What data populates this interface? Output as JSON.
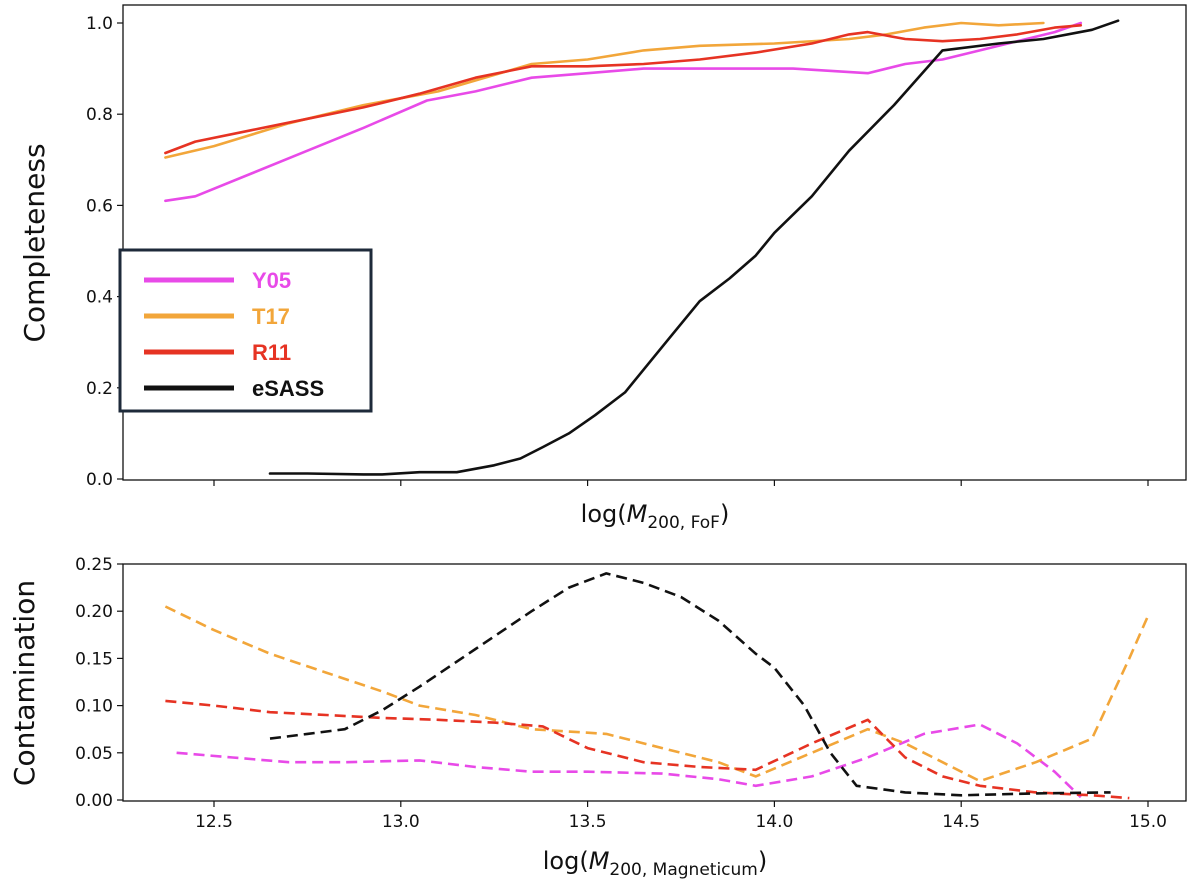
{
  "chart_data": [
    {
      "type": "line",
      "title": "",
      "ylabel": "Completeness",
      "xlabel": "log(M_{200, FoF})",
      "xlabel_main": "log(",
      "xlabel_var": "M",
      "xlabel_sub": "200, FoF",
      "xlabel_close": ")",
      "xlim": [
        12.2,
        15.0
      ],
      "ylim": [
        0.0,
        1.05
      ],
      "yticks": [
        0.0,
        0.2,
        0.4,
        0.6,
        0.8,
        1.0
      ],
      "ytick_labels": [
        "0.0",
        "0.2",
        "0.4",
        "0.6",
        "0.8",
        "1.0"
      ],
      "xticks": [
        12.5,
        13.0,
        13.5,
        14.0,
        14.5,
        15.0
      ],
      "legend": {
        "placement": "center-left"
      },
      "series": [
        {
          "name": "Y05",
          "color": "#e84ae8",
          "style": "solid",
          "x": [
            12.37,
            12.45,
            12.6,
            12.75,
            12.9,
            13.07,
            13.2,
            13.35,
            13.5,
            13.65,
            13.8,
            13.95,
            14.05,
            14.25,
            14.35,
            14.45,
            14.55,
            14.65,
            14.75,
            14.82
          ],
          "y": [
            0.61,
            0.62,
            0.67,
            0.72,
            0.77,
            0.83,
            0.85,
            0.88,
            0.89,
            0.9,
            0.9,
            0.9,
            0.9,
            0.89,
            0.91,
            0.92,
            0.94,
            0.96,
            0.98,
            1.0
          ]
        },
        {
          "name": "T17",
          "color": "#f2a63a",
          "style": "solid",
          "x": [
            12.37,
            12.5,
            12.7,
            12.9,
            13.1,
            13.35,
            13.5,
            13.65,
            13.8,
            14.0,
            14.2,
            14.3,
            14.4,
            14.5,
            14.6,
            14.72
          ],
          "y": [
            0.705,
            0.73,
            0.78,
            0.82,
            0.85,
            0.91,
            0.92,
            0.94,
            0.95,
            0.955,
            0.965,
            0.975,
            0.99,
            1.0,
            0.995,
            1.0
          ]
        },
        {
          "name": "R11",
          "color": "#e63323",
          "style": "solid",
          "x": [
            12.37,
            12.45,
            12.6,
            12.75,
            12.9,
            13.05,
            13.2,
            13.35,
            13.5,
            13.65,
            13.8,
            13.95,
            14.1,
            14.2,
            14.25,
            14.35,
            14.45,
            14.55,
            14.65,
            14.75,
            14.82
          ],
          "y": [
            0.715,
            0.74,
            0.765,
            0.79,
            0.815,
            0.845,
            0.88,
            0.905,
            0.905,
            0.91,
            0.92,
            0.935,
            0.955,
            0.975,
            0.98,
            0.965,
            0.96,
            0.965,
            0.975,
            0.99,
            0.995
          ]
        },
        {
          "name": "eSASS",
          "color": "#111111",
          "style": "solid",
          "x": [
            12.65,
            12.75,
            12.9,
            12.95,
            13.05,
            13.15,
            13.25,
            13.32,
            13.38,
            13.45,
            13.52,
            13.6,
            13.67,
            13.72,
            13.8,
            13.88,
            13.95,
            14.0,
            14.1,
            14.2,
            14.32,
            14.45,
            14.6,
            14.72,
            14.85,
            14.92
          ],
          "y": [
            0.012,
            0.012,
            0.01,
            0.01,
            0.015,
            0.015,
            0.03,
            0.045,
            0.07,
            0.1,
            0.14,
            0.19,
            0.26,
            0.31,
            0.39,
            0.44,
            0.49,
            0.54,
            0.62,
            0.72,
            0.82,
            0.94,
            0.955,
            0.965,
            0.985,
            1.005
          ]
        }
      ]
    },
    {
      "type": "line",
      "title": "",
      "ylabel": "Contamination",
      "xlabel": "log(M_{200, Magneticum})",
      "xlabel_main": "log(",
      "xlabel_var": "M",
      "xlabel_sub": "200, Magneticum",
      "xlabel_close": ")",
      "xlim": [
        12.2,
        15.0
      ],
      "ylim": [
        0.0,
        0.25
      ],
      "yticks": [
        0.0,
        0.05,
        0.1,
        0.15,
        0.2,
        0.25
      ],
      "ytick_labels": [
        "0.00",
        "0.05",
        "0.10",
        "0.15",
        "0.20",
        "0.25"
      ],
      "xticks": [
        12.5,
        13.0,
        13.5,
        14.0,
        14.5,
        15.0
      ],
      "xtick_labels": [
        "12.5",
        "13.0",
        "13.5",
        "14.0",
        "14.5",
        "15.0"
      ],
      "series": [
        {
          "name": "Y05",
          "color": "#e84ae8",
          "style": "dashed",
          "x": [
            12.4,
            12.55,
            12.7,
            12.85,
            13.05,
            13.2,
            13.35,
            13.5,
            13.7,
            13.85,
            13.95,
            14.1,
            14.25,
            14.4,
            14.55,
            14.65,
            14.75,
            14.82
          ],
          "y": [
            0.05,
            0.045,
            0.04,
            0.04,
            0.042,
            0.035,
            0.03,
            0.03,
            0.028,
            0.022,
            0.015,
            0.025,
            0.045,
            0.07,
            0.08,
            0.06,
            0.03,
            0.003
          ]
        },
        {
          "name": "T17",
          "color": "#f2a63a",
          "style": "dashed",
          "x": [
            12.37,
            12.5,
            12.65,
            12.8,
            12.95,
            13.05,
            13.2,
            13.35,
            13.55,
            13.7,
            13.85,
            13.95,
            14.1,
            14.25,
            14.35,
            14.45,
            14.55,
            14.7,
            14.85,
            14.95,
            15.0
          ],
          "y": [
            0.205,
            0.18,
            0.155,
            0.135,
            0.115,
            0.1,
            0.09,
            0.075,
            0.07,
            0.055,
            0.04,
            0.025,
            0.05,
            0.075,
            0.06,
            0.04,
            0.02,
            0.04,
            0.065,
            0.15,
            0.195
          ]
        },
        {
          "name": "R11",
          "color": "#e63323",
          "style": "dashed",
          "x": [
            12.37,
            12.5,
            12.65,
            12.8,
            12.95,
            13.1,
            13.25,
            13.38,
            13.5,
            13.65,
            13.8,
            13.95,
            14.1,
            14.25,
            14.35,
            14.45,
            14.55,
            14.7,
            14.85,
            14.95
          ],
          "y": [
            0.105,
            0.1,
            0.093,
            0.09,
            0.087,
            0.085,
            0.082,
            0.078,
            0.055,
            0.04,
            0.035,
            0.032,
            0.06,
            0.085,
            0.045,
            0.025,
            0.015,
            0.008,
            0.005,
            0.002
          ]
        },
        {
          "name": "eSASS",
          "color": "#111111",
          "style": "dashed",
          "x": [
            12.65,
            12.75,
            12.85,
            12.95,
            13.05,
            13.2,
            13.35,
            13.45,
            13.55,
            13.65,
            13.75,
            13.85,
            13.95,
            14.0,
            14.08,
            14.15,
            14.22,
            14.35,
            14.5,
            14.7,
            14.9
          ],
          "y": [
            0.065,
            0.07,
            0.075,
            0.095,
            0.12,
            0.16,
            0.2,
            0.225,
            0.24,
            0.23,
            0.215,
            0.19,
            0.155,
            0.14,
            0.1,
            0.05,
            0.015,
            0.008,
            0.005,
            0.007,
            0.008
          ]
        }
      ]
    }
  ]
}
